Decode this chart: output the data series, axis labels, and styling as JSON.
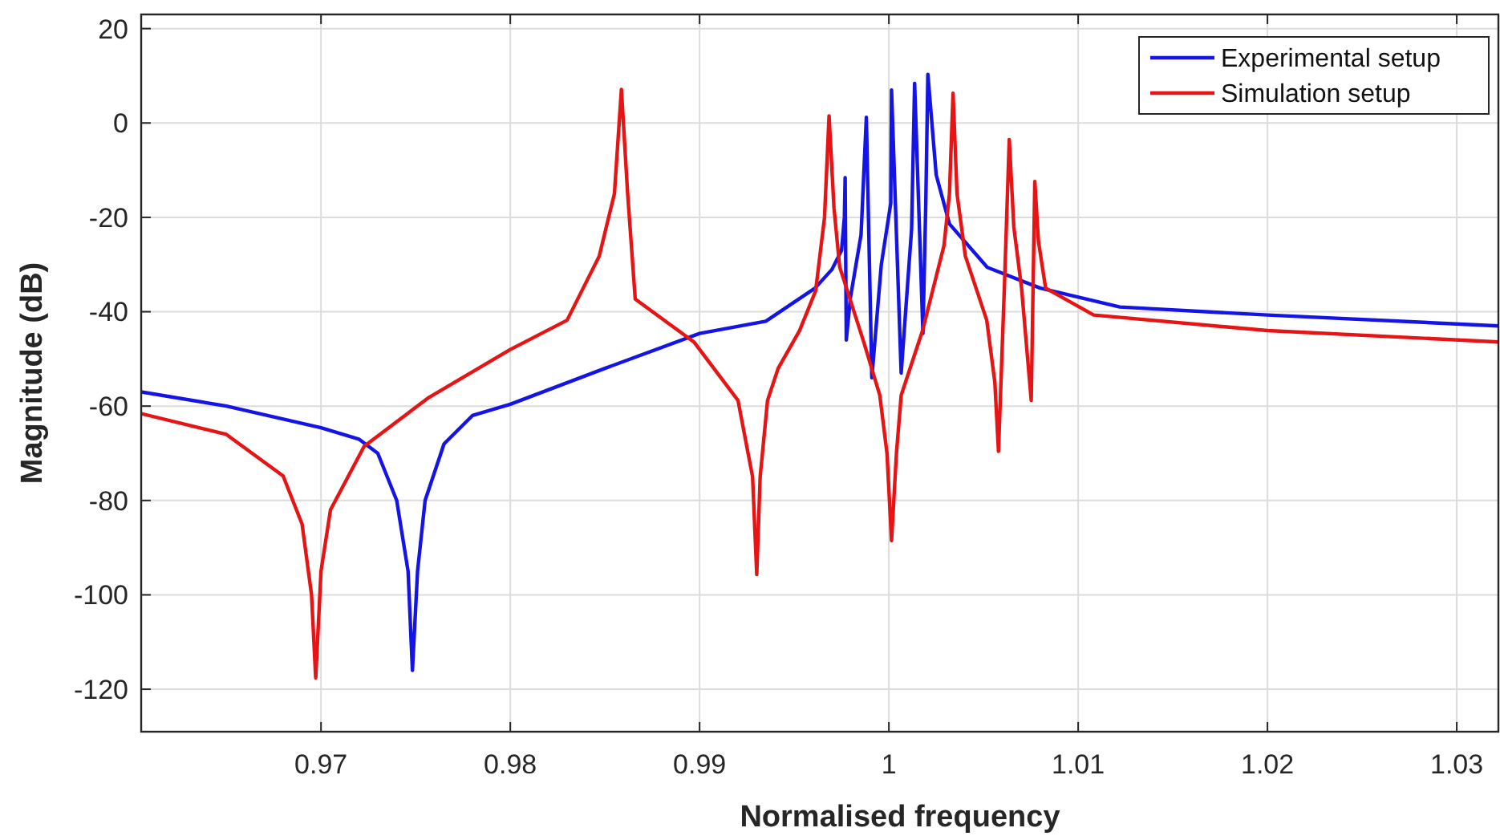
{
  "chart_data": {
    "type": "line",
    "xlabel": "Normalised frequency",
    "ylabel": "Magnitude (dB)",
    "xlim": [
      0.9605,
      1.0322
    ],
    "xticks": [
      0.97,
      0.98,
      0.99,
      1,
      1.01,
      1.02,
      1.03
    ],
    "ylim": [
      -129,
      23
    ],
    "yticks": [
      -120,
      -100,
      -80,
      -60,
      -40,
      -20,
      0,
      20
    ],
    "grid": true,
    "legend": "top right",
    "line_style": "solid",
    "marker": "none",
    "series": [
      {
        "name": "Experimental setup",
        "color": "#1414e6",
        "x": [
          0.9605,
          0.965,
          0.97,
          0.972,
          0.973,
          0.974,
          0.9746,
          0.97483,
          0.9751,
          0.9755,
          0.9765,
          0.978,
          0.98,
          0.985,
          0.99,
          0.9935,
          0.9961,
          0.997,
          0.9975,
          0.99765,
          0.99769,
          0.99775,
          0.99797,
          0.99853,
          0.99881,
          0.9991,
          0.9996,
          1.0001,
          1.00014,
          1.00065,
          1.0012,
          1.00136,
          1.0018,
          1.00195,
          1.00206,
          1.0025,
          1.0032,
          1.0052,
          1.008,
          1.0122,
          1.02,
          1.0322
        ],
        "values": [
          -57,
          -60,
          -64.6,
          -67,
          -70,
          -80,
          -95,
          -116,
          -95,
          -80,
          -68,
          -62,
          -59.6,
          -52,
          -44.6,
          -42,
          -35,
          -31,
          -27,
          -20,
          -11.6,
          -46,
          -37,
          -23.7,
          1.2,
          -54,
          -30,
          -17,
          7,
          -53,
          -22.5,
          8.4,
          -44.6,
          -17,
          10.3,
          -11,
          -21.4,
          -30.6,
          -35,
          -39,
          -40.7,
          -43
        ]
      },
      {
        "name": "Simulation setup",
        "color": "#e61414",
        "x": [
          0.9605,
          0.965,
          0.968,
          0.969,
          0.9695,
          0.96972,
          0.97,
          0.9705,
          0.97228,
          0.97565,
          0.98,
          0.983,
          0.9847,
          0.9855,
          0.98587,
          0.9862,
          0.9866,
          0.9897,
          0.99203,
          0.9928,
          0.99302,
          0.9932,
          0.99359,
          0.99415,
          0.99528,
          0.99613,
          0.9966,
          0.99684,
          0.9971,
          0.9974,
          0.99867,
          0.99952,
          0.9999,
          1.00014,
          1.0004,
          1.00065,
          1.00178,
          1.00291,
          1.0032,
          1.00339,
          1.0036,
          1.00404,
          1.00517,
          1.0056,
          1.00579,
          1.0061,
          1.00636,
          1.0066,
          1.00701,
          1.00752,
          1.00771,
          1.0079,
          1.00828,
          1.01082,
          1.02,
          1.0322
        ],
        "values": [
          -61.6,
          -66,
          -74.8,
          -85,
          -100,
          -117.6,
          -95,
          -82,
          -68.5,
          -58.3,
          -48,
          -41.8,
          -28.2,
          -15,
          7.1,
          -15,
          -37.3,
          -46.4,
          -58.8,
          -75,
          -95.7,
          -75,
          -58.8,
          -52,
          -44,
          -35.6,
          -20,
          1.5,
          -18,
          -30.5,
          -46.4,
          -57.7,
          -70,
          -88.5,
          -70,
          -57.7,
          -44,
          -26,
          -15,
          6.3,
          -15,
          -28.2,
          -41.8,
          -55,
          -69.6,
          -35,
          -3.5,
          -22,
          -35,
          -58.8,
          -12.4,
          -25,
          -35,
          -40.7,
          -44,
          -46.4
        ]
      }
    ]
  }
}
